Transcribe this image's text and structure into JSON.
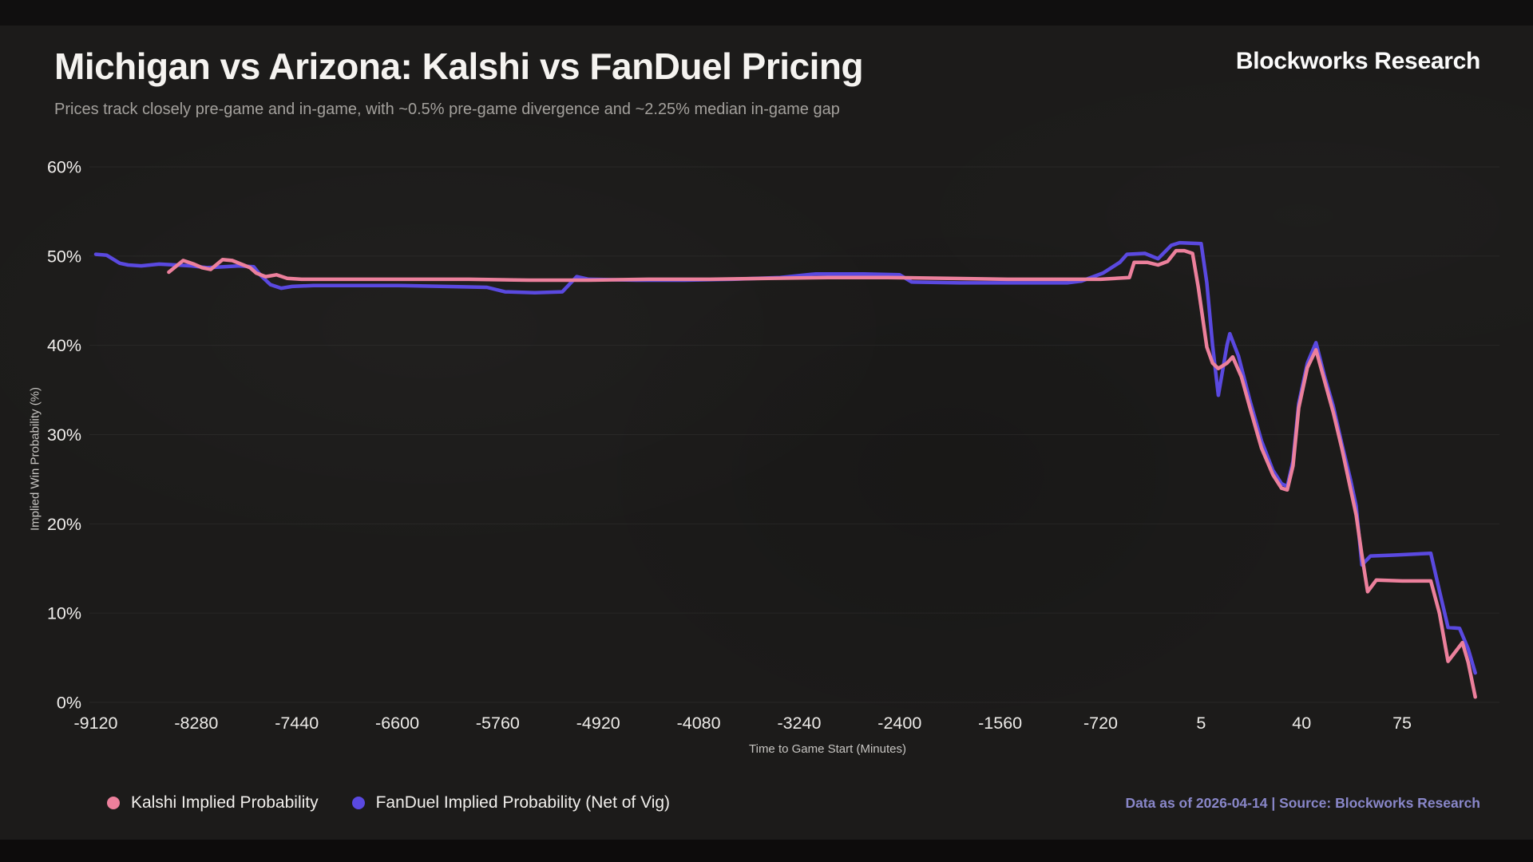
{
  "brand": "Blockworks Research",
  "footer": "Data as of 2026-04-14 | Source: Blockworks Research",
  "colors": {
    "kalshi_pink": "#ec809c",
    "fanduel_purple": "#5a49e0",
    "background": "#1c1b1a",
    "grid": "rgba(255,255,255,0.055)",
    "footer_text": "#8987c9"
  },
  "chart_data": {
    "type": "line",
    "title": "Michigan vs Arizona: Kalshi vs FanDuel Pricing",
    "subtitle": "Prices track closely pre-game and in-game, with ~0.5% pre-game divergence and ~2.25% median in-game gap",
    "xlabel": "Time to Game Start (Minutes)",
    "ylabel": "Implied Win Probability (%)",
    "ylim": [
      0,
      60
    ],
    "y_tick_labels": [
      "0%",
      "10%",
      "20%",
      "30%",
      "40%",
      "50%",
      "60%"
    ],
    "x_tick_labels": [
      "-9120",
      "-8280",
      "-7440",
      "-6600",
      "-5760",
      "-4920",
      "-4080",
      "-3240",
      "-2400",
      "-1560",
      "-720",
      "5",
      "40",
      "75"
    ],
    "x_axis_note": "Non-linear axis: pre-game ticks spaced 840 min apart, in-game ticks spaced 35 min apart, equal pixel spacing; game start = 0.",
    "grid": "horizontal",
    "legend_position": "bottom-left",
    "series": [
      {
        "name": "FanDuel Implied Probability (Net of Vig)",
        "color": "#5a49e0",
        "points": [
          [
            -9120,
            50.2
          ],
          [
            -9030,
            50.1
          ],
          [
            -8920,
            49.2
          ],
          [
            -8850,
            49.0
          ],
          [
            -8740,
            48.9
          ],
          [
            -8590,
            49.1
          ],
          [
            -8450,
            49.0
          ],
          [
            -8320,
            48.9
          ],
          [
            -8190,
            48.7
          ],
          [
            -8050,
            48.8
          ],
          [
            -7920,
            48.9
          ],
          [
            -7800,
            48.8
          ],
          [
            -7740,
            47.8
          ],
          [
            -7660,
            46.8
          ],
          [
            -7570,
            46.4
          ],
          [
            -7480,
            46.6
          ],
          [
            -7300,
            46.7
          ],
          [
            -7000,
            46.7
          ],
          [
            -6600,
            46.7
          ],
          [
            -6200,
            46.6
          ],
          [
            -5850,
            46.5
          ],
          [
            -5700,
            46.0
          ],
          [
            -5450,
            45.9
          ],
          [
            -5220,
            46.0
          ],
          [
            -5100,
            47.7
          ],
          [
            -5000,
            47.4
          ],
          [
            -4600,
            47.3
          ],
          [
            -4200,
            47.3
          ],
          [
            -3800,
            47.4
          ],
          [
            -3400,
            47.6
          ],
          [
            -3100,
            48.0
          ],
          [
            -2700,
            48.0
          ],
          [
            -2400,
            47.9
          ],
          [
            -2300,
            47.1
          ],
          [
            -1900,
            47.0
          ],
          [
            -1400,
            47.0
          ],
          [
            -1000,
            47.0
          ],
          [
            -880,
            47.2
          ],
          [
            -700,
            48.1
          ],
          [
            -560,
            49.3
          ],
          [
            -500,
            50.2
          ],
          [
            -350,
            50.3
          ],
          [
            -240,
            49.7
          ],
          [
            -130,
            51.2
          ],
          [
            -60,
            51.5
          ],
          [
            5,
            51.4
          ],
          [
            7,
            47.0
          ],
          [
            9,
            40.0
          ],
          [
            11,
            34.4
          ],
          [
            14,
            40.0
          ],
          [
            15,
            41.3
          ],
          [
            18,
            38.8
          ],
          [
            22,
            33.8
          ],
          [
            26,
            29.3
          ],
          [
            30,
            26.0
          ],
          [
            33,
            24.5
          ],
          [
            35,
            24.2
          ],
          [
            37,
            27.0
          ],
          [
            39,
            33.5
          ],
          [
            42,
            38.0
          ],
          [
            45,
            40.3
          ],
          [
            48,
            36.5
          ],
          [
            51,
            33.2
          ],
          [
            54,
            29.0
          ],
          [
            57,
            25.0
          ],
          [
            59,
            22.0
          ],
          [
            61,
            15.4
          ],
          [
            64,
            16.4
          ],
          [
            72,
            16.5
          ],
          [
            85,
            16.7
          ],
          [
            88,
            12.5
          ],
          [
            91,
            8.4
          ],
          [
            95,
            8.3
          ],
          [
            98,
            6.0
          ],
          [
            100.5,
            3.3
          ]
        ]
      },
      {
        "name": "Kalshi Implied Probability",
        "color": "#ec809c",
        "points": [
          [
            -8510,
            48.2
          ],
          [
            -8390,
            49.5
          ],
          [
            -8300,
            49.1
          ],
          [
            -8230,
            48.7
          ],
          [
            -8160,
            48.5
          ],
          [
            -8060,
            49.6
          ],
          [
            -7980,
            49.5
          ],
          [
            -7830,
            48.7
          ],
          [
            -7780,
            48.1
          ],
          [
            -7700,
            47.7
          ],
          [
            -7610,
            47.9
          ],
          [
            -7520,
            47.5
          ],
          [
            -7400,
            47.4
          ],
          [
            -7000,
            47.4
          ],
          [
            -6500,
            47.4
          ],
          [
            -6000,
            47.4
          ],
          [
            -5500,
            47.3
          ],
          [
            -5000,
            47.3
          ],
          [
            -4500,
            47.4
          ],
          [
            -4000,
            47.4
          ],
          [
            -3500,
            47.5
          ],
          [
            -3000,
            47.6
          ],
          [
            -2500,
            47.6
          ],
          [
            -2000,
            47.5
          ],
          [
            -1500,
            47.4
          ],
          [
            -1000,
            47.4
          ],
          [
            -720,
            47.4
          ],
          [
            -480,
            47.6
          ],
          [
            -440,
            49.3
          ],
          [
            -330,
            49.3
          ],
          [
            -240,
            49.0
          ],
          [
            -160,
            49.4
          ],
          [
            -90,
            50.6
          ],
          [
            -20,
            50.6
          ],
          [
            2,
            50.3
          ],
          [
            4,
            46.5
          ],
          [
            7,
            39.8
          ],
          [
            9,
            38.0
          ],
          [
            11,
            37.4
          ],
          [
            14,
            38.0
          ],
          [
            16,
            38.7
          ],
          [
            19,
            36.5
          ],
          [
            22,
            33.0
          ],
          [
            26,
            28.5
          ],
          [
            30,
            25.5
          ],
          [
            33,
            24.0
          ],
          [
            35,
            23.8
          ],
          [
            37,
            26.5
          ],
          [
            39,
            33.0
          ],
          [
            42,
            37.5
          ],
          [
            45,
            39.5
          ],
          [
            48,
            36.0
          ],
          [
            51,
            32.5
          ],
          [
            54,
            28.5
          ],
          [
            57,
            24.0
          ],
          [
            59,
            21.0
          ],
          [
            61,
            16.5
          ],
          [
            63,
            12.4
          ],
          [
            66,
            13.7
          ],
          [
            75,
            13.6
          ],
          [
            85,
            13.6
          ],
          [
            88,
            10.0
          ],
          [
            91,
            4.6
          ],
          [
            96,
            6.7
          ],
          [
            98,
            4.5
          ],
          [
            100.5,
            0.6
          ]
        ]
      }
    ]
  }
}
